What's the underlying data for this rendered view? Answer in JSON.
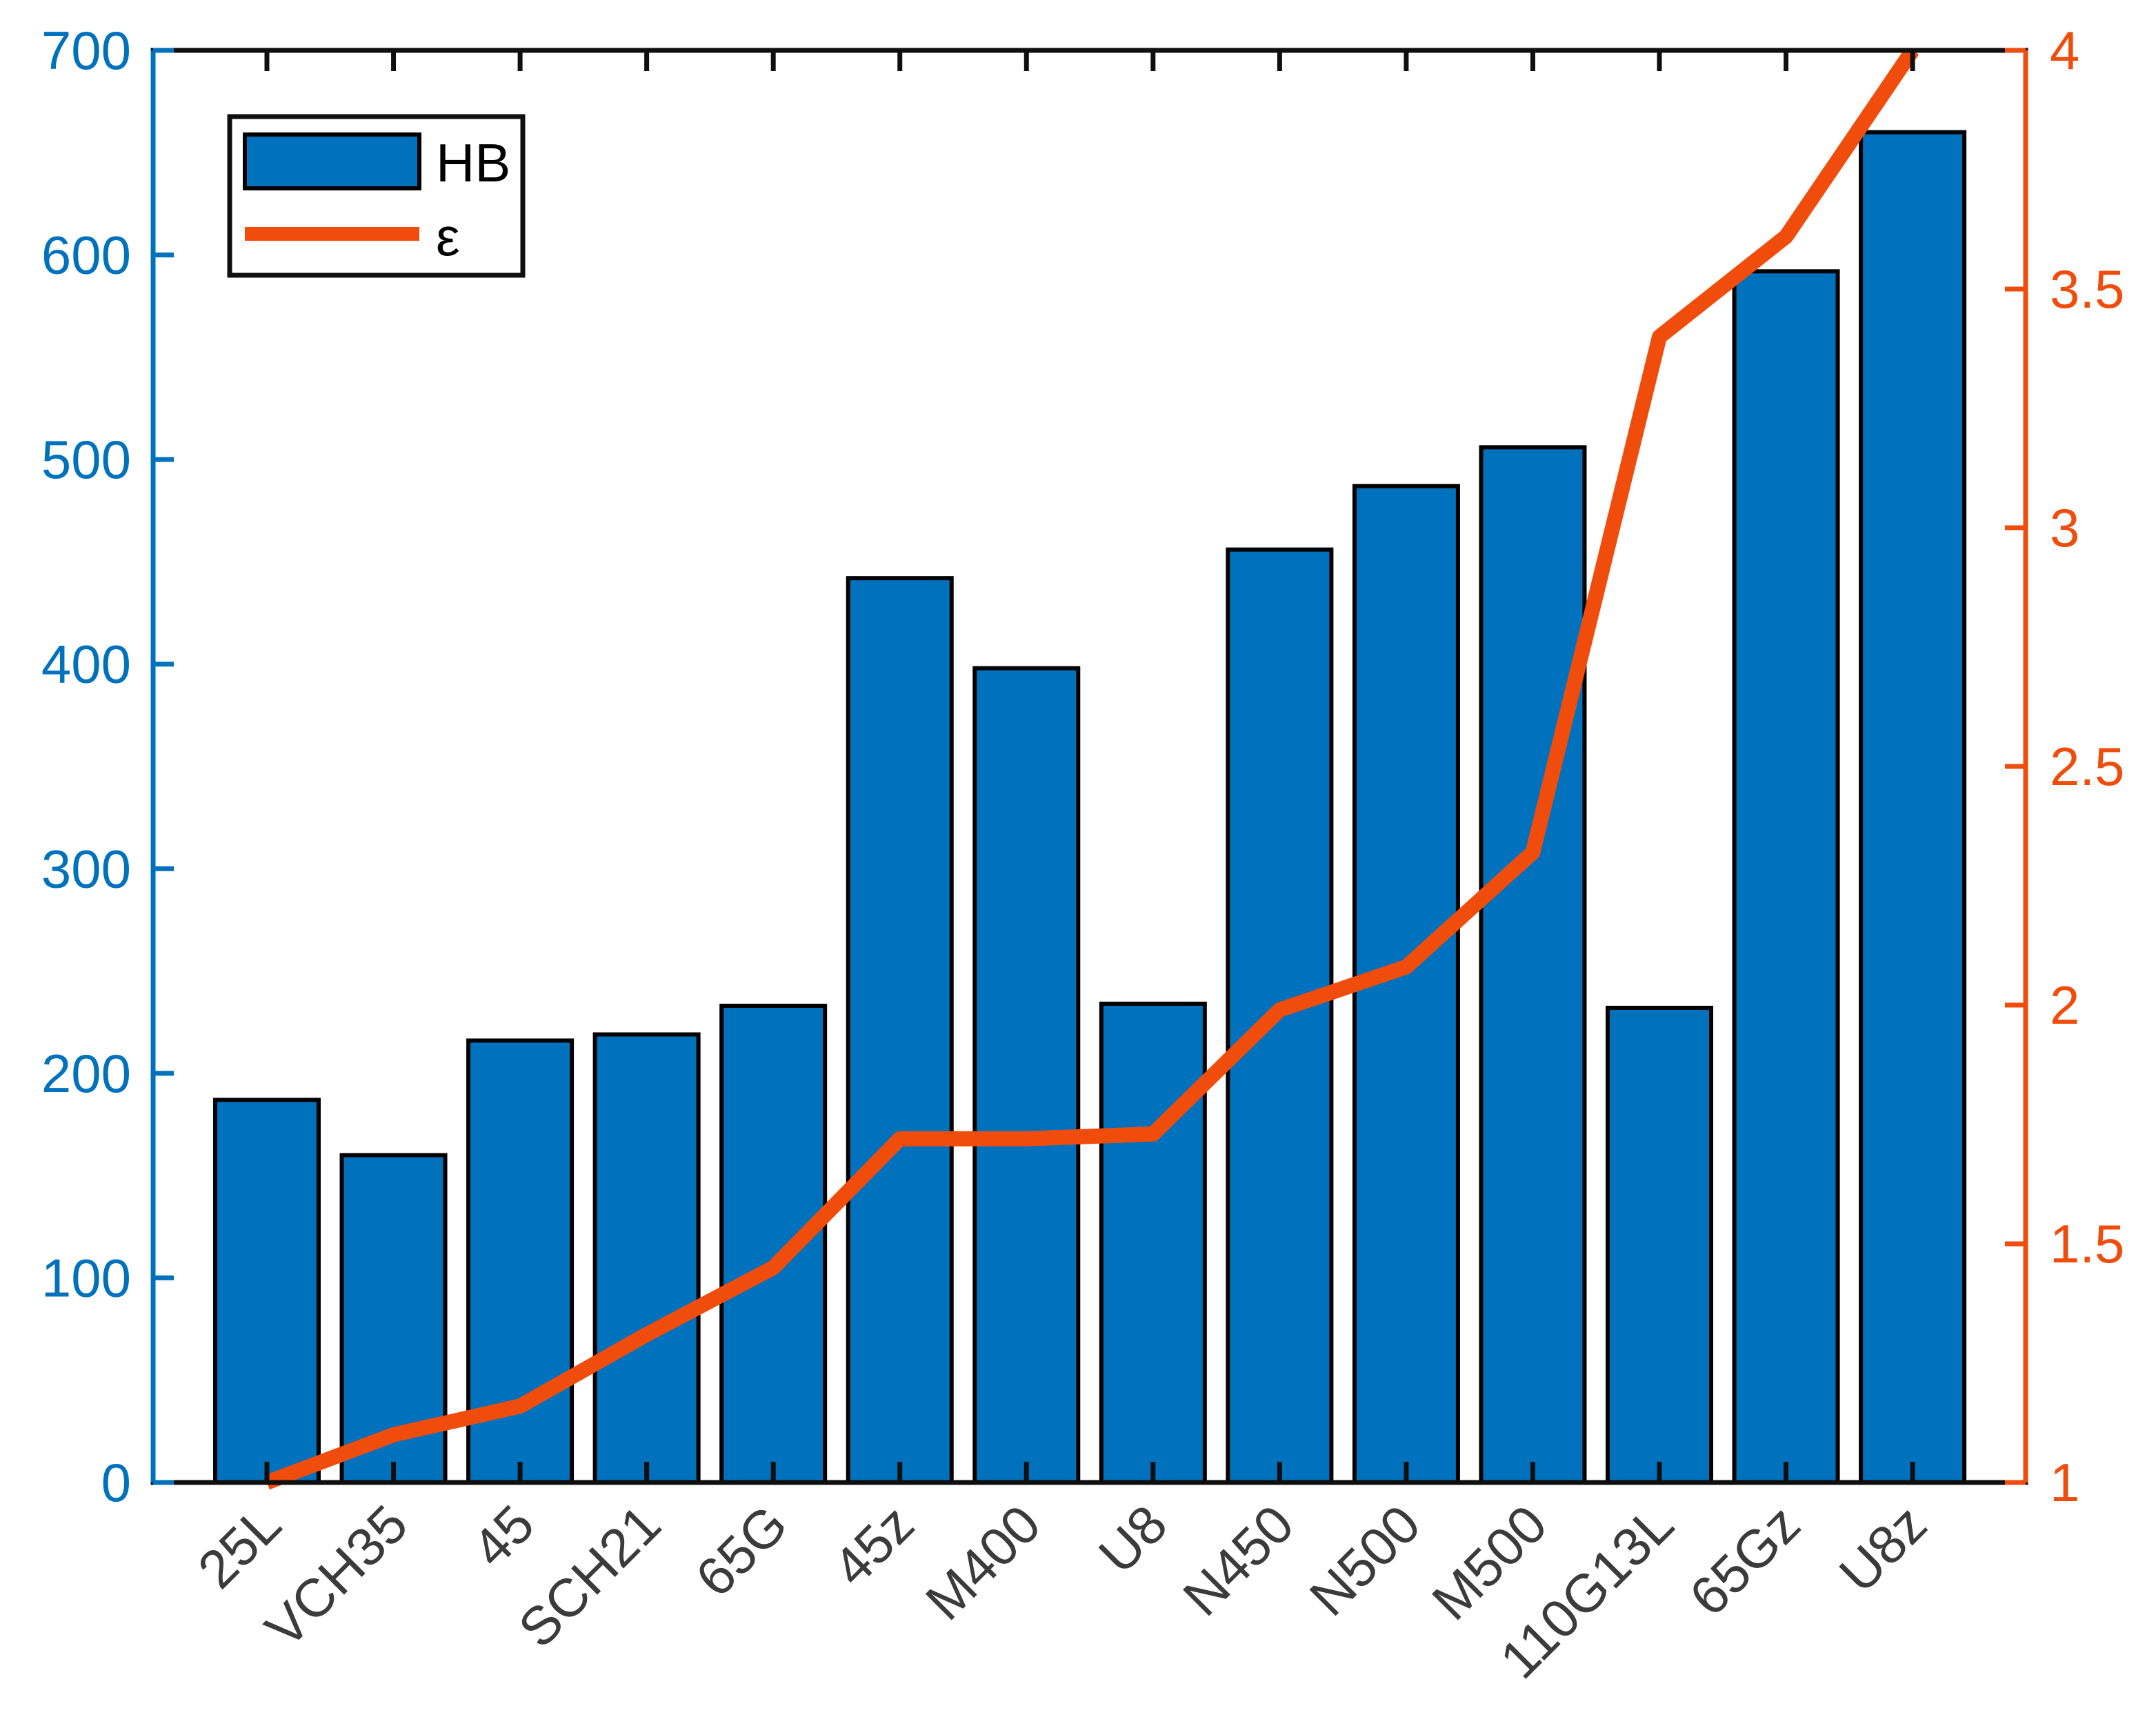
{
  "figure": {
    "background": "#ffffff",
    "plot_box_color": "#0f0f0f"
  },
  "legend": {
    "position": "top-left",
    "entries": [
      {
        "label": "HB",
        "type": "bar"
      },
      {
        "label": "ε",
        "type": "line"
      }
    ]
  },
  "chart_data": {
    "type": "bar",
    "subtype": "bar+line dual y-axis",
    "title": "",
    "xlabel": "",
    "ylabel": "",
    "grid": false,
    "legend_position": "top-left",
    "categories": [
      "25L",
      "VCH35",
      "45",
      "SCH21",
      "65G",
      "45z",
      "M400",
      "U8",
      "N450",
      "N500",
      "M500",
      "110G13L",
      "65Gz",
      "U8z"
    ],
    "series": [
      {
        "name": "HB",
        "type": "bar",
        "axis": "left",
        "color": "#0072BD",
        "edge_color": "#000000",
        "values": [
          187,
          160,
          216,
          219,
          233,
          442,
          398,
          234,
          456,
          487,
          506,
          232,
          592,
          660
        ]
      },
      {
        "name": "ε",
        "type": "line",
        "axis": "right",
        "color": "#F04C0C",
        "values": [
          1.0,
          1.1,
          1.16,
          1.31,
          1.45,
          1.72,
          1.72,
          1.73,
          1.99,
          2.08,
          2.32,
          3.4,
          3.61,
          4.0
        ]
      }
    ],
    "left_axis": {
      "color": "#0072BD",
      "min": 0,
      "max": 700,
      "tick_labels": [
        "0",
        "100",
        "200",
        "300",
        "400",
        "500",
        "600",
        "700"
      ]
    },
    "right_axis": {
      "color": "#F04C0C",
      "min": 1,
      "max": 4,
      "tick_labels": [
        "1",
        "1.5",
        "2",
        "2.5",
        "3",
        "3.5",
        "4"
      ]
    },
    "x_axis": {
      "tick_label_color": "#3b3b3b",
      "tick_color": "#0f0f0f",
      "label_rotation_deg": 45
    }
  }
}
